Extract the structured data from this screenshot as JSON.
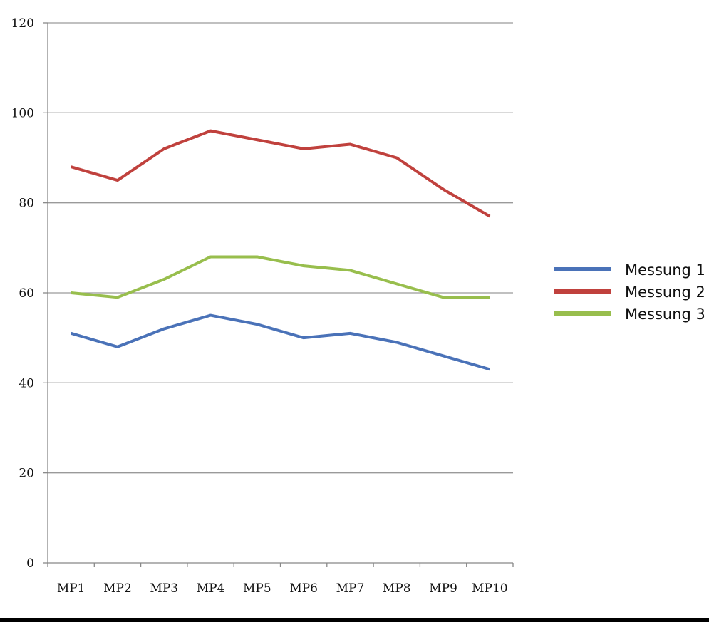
{
  "chart_data": {
    "type": "line",
    "title": "",
    "xlabel": "",
    "ylabel": "",
    "categories": [
      "MP1",
      "MP2",
      "MP3",
      "MP4",
      "MP5",
      "MP6",
      "MP7",
      "MP8",
      "MP9",
      "MP10"
    ],
    "ylim": [
      0,
      120
    ],
    "yticks": [
      "0",
      "20",
      "40",
      "60",
      "80",
      "100",
      "120"
    ],
    "grid": true,
    "legend_position": "right",
    "series": [
      {
        "name": "Messung 1",
        "color": "#4a72b8",
        "values": [
          51,
          48,
          52,
          55,
          53,
          50,
          51,
          49,
          46,
          43
        ]
      },
      {
        "name": "Messung 2",
        "color": "#c0413d",
        "values": [
          88,
          85,
          92,
          96,
          94,
          92,
          93,
          90,
          83,
          77
        ]
      },
      {
        "name": "Messung 3",
        "color": "#98be4d",
        "values": [
          60,
          59,
          63,
          68,
          68,
          66,
          65,
          62,
          59,
          59
        ]
      }
    ]
  }
}
